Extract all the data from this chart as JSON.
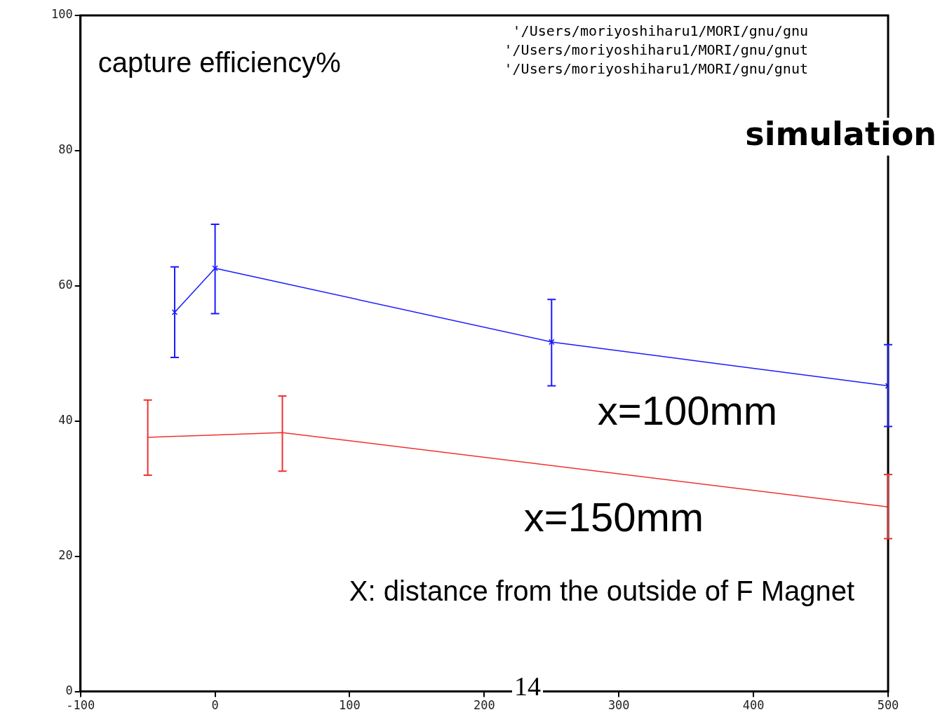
{
  "chart_data": {
    "type": "line",
    "title": "simulation",
    "ylabel": "capture efficiency%",
    "series": [
      {
        "name": "x=100mm",
        "color": "#1a1aff",
        "marker": "cross",
        "x": [
          -30,
          0,
          250,
          500
        ],
        "values": [
          56.1,
          62.6,
          51.7,
          45.2
        ],
        "errors": [
          [
            49.4,
            62.8
          ],
          [
            55.9,
            69.1
          ],
          [
            45.2,
            58.0
          ],
          [
            39.2,
            51.3
          ]
        ]
      },
      {
        "name": "x=150mm",
        "color": "#f03030",
        "marker": "none",
        "x": [
          -50,
          50,
          500
        ],
        "values": [
          37.6,
          38.3,
          27.3
        ],
        "errors": [
          [
            32.0,
            43.1
          ],
          [
            32.6,
            43.7
          ],
          [
            22.6,
            32.1
          ]
        ]
      }
    ],
    "xlim": [
      -100,
      500
    ],
    "xticks": [
      -100,
      0,
      100,
      200,
      300,
      400,
      500
    ],
    "ylim": [
      0,
      100
    ],
    "yticks": [
      0,
      20,
      40,
      60,
      80,
      100
    ],
    "grid": false,
    "legend": false,
    "line_style": "solid",
    "annotations": [
      "'/Users/moriyoshiharu1/MORI/gnu/gnu",
      "'/Users/moriyoshiharu1/MORI/gnu/gnut",
      "'/Users/moriyoshiharu1/MORI/gnu/gnut",
      "X: distance from the outside of F Magnet",
      "14"
    ]
  }
}
